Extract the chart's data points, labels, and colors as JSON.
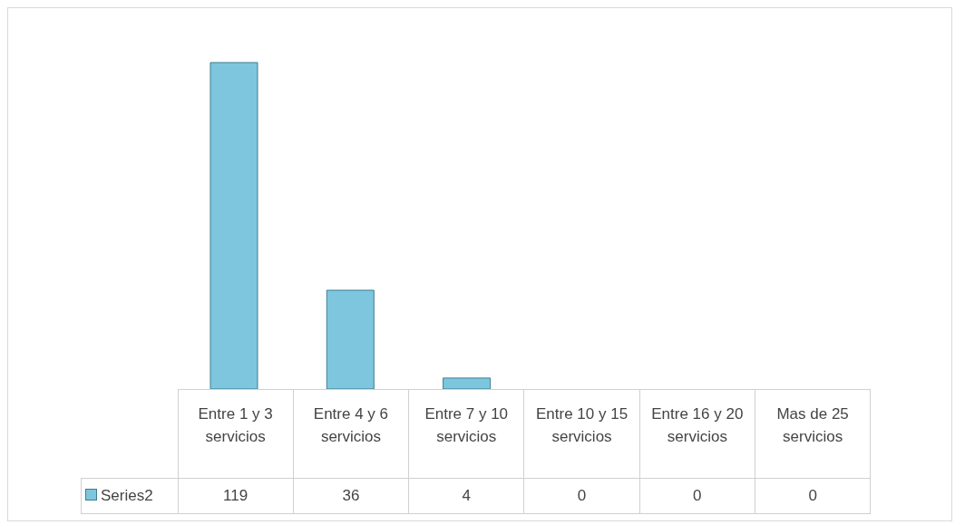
{
  "chart_data": {
    "type": "bar",
    "categories": [
      "Entre 1 y 3 servicios",
      "Entre 4 y 6 servicios",
      "Entre 7 y 10 servicios",
      "Entre 10 y 15 servicios",
      "Entre 16 y 20 servicios",
      "Mas de 25 servicios"
    ],
    "series": [
      {
        "name": "Series2",
        "color": "#7ec6de",
        "values": [
          119,
          36,
          4,
          0,
          0,
          0
        ]
      }
    ],
    "data_labels": true,
    "legend": "bottom left"
  }
}
